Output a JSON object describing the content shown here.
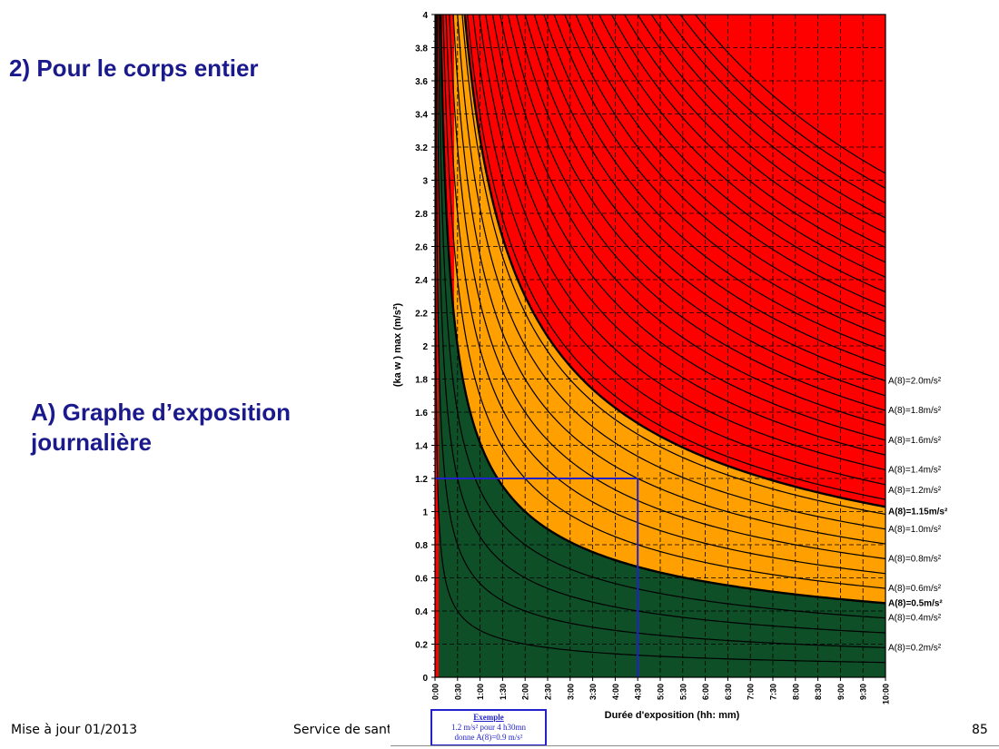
{
  "slide": {
    "heading_main": "2) Pour le corps entier",
    "heading_sub": "A) Graphe d’exposition journalière",
    "footer_left": "Mise à jour 01/2013",
    "footer_center": "Service de sant",
    "page_number": "85"
  },
  "example": {
    "title": "Exemple",
    "line1": "1.2 m/s² pour 4 h30mn",
    "line2": "donne A(8)=0.9 m/s²"
  },
  "chart_data": {
    "type": "line",
    "xlabel": "Durée d'exposition (hh: mm)",
    "ylabel": "(ka w ) max (m/s²)",
    "xlim": [
      0,
      10
    ],
    "ylim": [
      0,
      4
    ],
    "x_ticks": [
      "0:00",
      "0:30",
      "1:00",
      "1:30",
      "2:00",
      "2:30",
      "3:00",
      "3:30",
      "4:00",
      "4:30",
      "5:00",
      "5:30",
      "6:00",
      "6:30",
      "7:00",
      "7:30",
      "8:00",
      "8:30",
      "9:00",
      "9:30",
      "10:00"
    ],
    "y_ticks": [
      "0",
      "0.2",
      "0.4",
      "0.6",
      "0.8",
      "1",
      "1.2",
      "1.4",
      "1.6",
      "1.8",
      "2",
      "2.2",
      "2.4",
      "2.6",
      "2.8",
      "3",
      "3.2",
      "3.4",
      "3.6",
      "3.8",
      "4"
    ],
    "grid": true,
    "formula": "a = A8 * sqrt(8 / t)",
    "zones": [
      {
        "name": "green",
        "below_A8": 0.5,
        "color": "#0f4f28"
      },
      {
        "name": "orange",
        "from_A8": 0.5,
        "to_A8": 1.15,
        "color": "#ff9f00"
      },
      {
        "name": "red",
        "above_A8": 1.15,
        "color": "#ff0000"
      }
    ],
    "series": [
      {
        "A8": 0.1
      },
      {
        "A8": 0.2,
        "label": "A(8)=0.2m/s²"
      },
      {
        "A8": 0.3
      },
      {
        "A8": 0.4,
        "label": "A(8)=0.4m/s²"
      },
      {
        "A8": 0.5,
        "label": "A(8)=0.5m/s²",
        "bold": true
      },
      {
        "A8": 0.6,
        "label": "A(8)=0.6m/s²"
      },
      {
        "A8": 0.7
      },
      {
        "A8": 0.8,
        "label": "A(8)=0.8m/s²"
      },
      {
        "A8": 0.9
      },
      {
        "A8": 1.0,
        "label": "A(8)=1.0m/s²"
      },
      {
        "A8": 1.1
      },
      {
        "A8": 1.15,
        "label": "A(8)=1.15m/s²",
        "bold": true
      },
      {
        "A8": 1.2,
        "label": "A(8)=1.2m/s²"
      },
      {
        "A8": 1.3
      },
      {
        "A8": 1.4,
        "label": "A(8)=1.4m/s²"
      },
      {
        "A8": 1.5
      },
      {
        "A8": 1.6,
        "label": "A(8)=1.6m/s²"
      },
      {
        "A8": 1.7
      },
      {
        "A8": 1.8,
        "label": "A(8)=1.8m/s²"
      },
      {
        "A8": 1.9
      },
      {
        "A8": 2.0,
        "label": "A(8)=2.0m/s²"
      },
      {
        "A8": 2.1
      },
      {
        "A8": 2.2
      },
      {
        "A8": 2.3
      },
      {
        "A8": 2.4
      },
      {
        "A8": 2.5
      },
      {
        "A8": 2.6
      },
      {
        "A8": 2.7
      },
      {
        "A8": 2.8
      },
      {
        "A8": 2.9
      },
      {
        "A8": 3.0
      },
      {
        "A8": 3.1
      },
      {
        "A8": 3.2
      },
      {
        "A8": 3.3
      },
      {
        "A8": 3.4
      }
    ],
    "example_point": {
      "x": 4.5,
      "y": 1.2,
      "color": "#2222cc"
    }
  }
}
